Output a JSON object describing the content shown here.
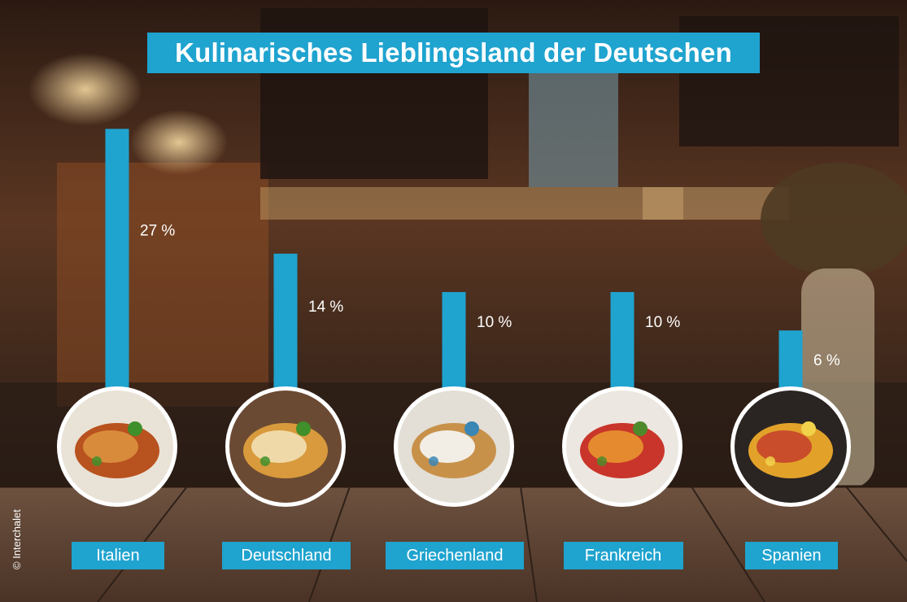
{
  "title": "Kulinarisches Lieblingsland der Deutschen",
  "copyright": "© Interchalet",
  "colors": {
    "accent": "#1fa3cf",
    "text": "#ffffff"
  },
  "chart_data": {
    "type": "bar",
    "title": "Kulinarisches Lieblingsland der Deutschen",
    "categories": [
      "Italien",
      "Deutschland",
      "Griechenland",
      "Frankreich",
      "Spanien"
    ],
    "values": [
      27,
      14,
      10,
      10,
      6
    ],
    "value_labels": [
      "27 %",
      "14 %",
      "10 %",
      "10 %",
      "6 %"
    ],
    "images": [
      "lasagne",
      "schnitzel",
      "gyros-skewer",
      "ratatouille",
      "paella"
    ],
    "xlabel": "",
    "ylabel": "",
    "grid": false,
    "legend": "none"
  }
}
